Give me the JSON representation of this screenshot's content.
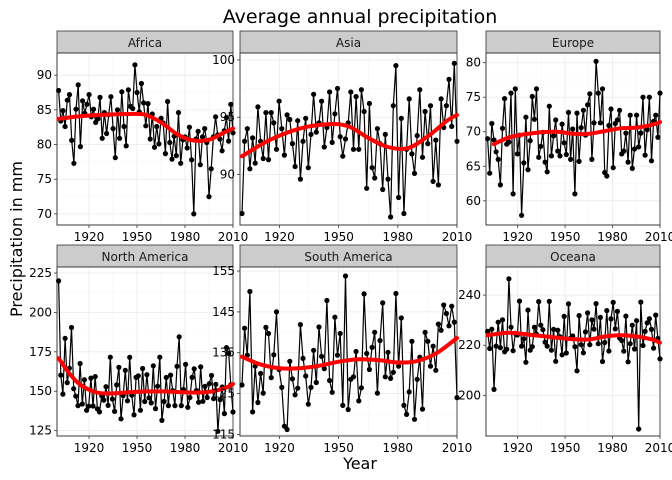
{
  "chart_data": {
    "type": "line",
    "title": "Average annual precipitation",
    "xlabel": "Year",
    "ylabel": "Precipitation in mm",
    "x_ticks": [
      1920,
      1950,
      1980,
      2010
    ],
    "xlim": [
      1900,
      2010
    ],
    "grid": true,
    "colors": {
      "points": "#000000",
      "smooth": "#ff0000",
      "strip": "#cccccc"
    },
    "facets": [
      {
        "name": "Africa",
        "ylim": [
          68.4,
          93.2
        ],
        "y_ticks": [
          70,
          75,
          80,
          85,
          90
        ],
        "values": [
          87.8,
          83.4,
          84.9,
          82.6,
          86.4,
          87.2,
          80.6,
          77.3,
          85.1,
          88.6,
          79.7,
          86.3,
          84.5,
          85.8,
          87.2,
          84.0,
          85.1,
          83.2,
          83.7,
          86.8,
          80.9,
          84.6,
          81.6,
          84.3,
          86.9,
          82.3,
          78.1,
          85.0,
          80.9,
          87.6,
          82.6,
          79.8,
          87.9,
          85.5,
          85.2,
          91.5,
          87.5,
          84.7,
          88.8,
          86.0,
          82.7,
          85.9,
          80.8,
          84.4,
          79.6,
          82.6,
          80.1,
          83.8,
          83.1,
          78.7,
          86.2,
          80.3,
          77.9,
          81.2,
          78.4,
          84.6,
          77.3,
          80.7,
          81.1,
          79.5,
          82.5,
          77.8,
          70.0,
          80.8,
          81.9,
          77.1,
          81.1,
          82.3,
          80.3,
          72.5,
          76.5,
          81.1,
          84.0,
          81.4,
          80.8,
          79.1,
          82.0,
          83.9,
          80.5,
          85.8,
          81.7
        ],
        "smooth": [
          [
            1901,
            83.7
          ],
          [
            1915,
            84.1
          ],
          [
            1930,
            84.3
          ],
          [
            1945,
            84.4
          ],
          [
            1955,
            84.3
          ],
          [
            1965,
            83.2
          ],
          [
            1975,
            81.5
          ],
          [
            1985,
            80.6
          ],
          [
            1995,
            80.7
          ],
          [
            2005,
            81.8
          ],
          [
            2010,
            82.3
          ]
        ]
      },
      {
        "name": "Asia",
        "ylim": [
          85.6,
          100.6
        ],
        "y_ticks": [
          90,
          95,
          100
        ],
        "values": [
          86.6,
          92.9,
          94.0,
          90.5,
          93.2,
          91.0,
          95.9,
          92.9,
          91.4,
          95.4,
          91.3,
          95.4,
          94.5,
          92.2,
          96.4,
          94.0,
          91.7,
          95.2,
          94.8,
          92.7,
          90.7,
          94.7,
          89.6,
          92.9,
          94.9,
          90.6,
          93.5,
          97.0,
          93.7,
          94.5,
          96.4,
          92.4,
          94.1,
          97.2,
          92.8,
          95.3,
          97.5,
          93.3,
          91.6,
          93.1,
          94.5,
          97.2,
          92.2,
          96.8,
          92.2,
          97.4,
          95.5,
          88.8,
          96.2,
          90.6,
          89.7,
          94.0,
          92.7,
          88.7,
          93.5,
          89.6,
          86.3,
          96.0,
          99.5,
          88.0,
          94.9,
          86.6,
          92.2,
          96.6,
          91.8,
          90.1,
          93.4,
          97.4,
          91.5,
          95.5,
          92.7,
          96.0,
          89.4,
          93.0,
          89.1,
          96.6,
          94.1,
          96.0,
          98.3,
          94.2,
          99.7,
          92.9
        ],
        "smooth": [
          [
            1901,
            91.6
          ],
          [
            1915,
            93.0
          ],
          [
            1930,
            94.0
          ],
          [
            1945,
            94.4
          ],
          [
            1955,
            94.2
          ],
          [
            1965,
            93.2
          ],
          [
            1975,
            92.4
          ],
          [
            1985,
            92.3
          ],
          [
            1995,
            93.3
          ],
          [
            2005,
            94.7
          ],
          [
            2010,
            95.2
          ]
        ]
      },
      {
        "name": "Europe",
        "ylim": [
          56.5,
          81.4
        ],
        "y_ticks": [
          60,
          65,
          70,
          75,
          80
        ],
        "values": [
          69.0,
          64.0,
          71.2,
          68.8,
          67.1,
          66.0,
          62.3,
          70.5,
          74.8,
          68.2,
          68.5,
          75.6,
          61.0,
          76.2,
          66.8,
          69.5,
          57.9,
          65.5,
          72.1,
          64.5,
          68.7,
          75.1,
          71.8,
          76.2,
          66.3,
          67.9,
          69.9,
          65.6,
          64.2,
          73.7,
          66.5,
          69.4,
          71.7,
          67.2,
          66.5,
          71.1,
          68.4,
          66.7,
          72.8,
          66.0,
          70.4,
          61.0,
          72.7,
          65.7,
          70.6,
          73.1,
          69.5,
          73.9,
          75.5,
          66.0,
          71.3,
          80.2,
          75.6,
          71.3,
          76.2,
          64.1,
          63.6,
          70.9,
          73.3,
          64.8,
          71.2,
          71.7,
          73.1,
          66.8,
          67.2,
          69.8,
          65.6,
          72.4,
          64.7,
          67.5,
          72.4,
          67.8,
          69.8,
          75.0,
          66.6,
          70.3,
          75.0,
          65.8,
          71.5,
          72.4,
          69.2,
          75.6
        ],
        "smooth": [
          [
            1905,
            68.2
          ],
          [
            1915,
            69.2
          ],
          [
            1930,
            69.8
          ],
          [
            1945,
            70.0
          ],
          [
            1955,
            69.7
          ],
          [
            1965,
            69.7
          ],
          [
            1975,
            70.1
          ],
          [
            1985,
            70.5
          ],
          [
            1995,
            70.6
          ],
          [
            2005,
            71.0
          ],
          [
            2010,
            71.4
          ]
        ]
      },
      {
        "name": "North America",
        "ylim": [
          121.6,
          228.8
        ],
        "y_ticks": [
          125,
          150,
          175,
          200,
          225
        ],
        "values": [
          220.0,
          160.2,
          148.2,
          183.6,
          155.5,
          164.6,
          190.4,
          151.6,
          146.9,
          140.8,
          167.6,
          141.9,
          157.3,
          137.9,
          140.5,
          158.3,
          140.6,
          159.3,
          138.8,
          136.9,
          147.1,
          144.4,
          152.9,
          141.0,
          171.6,
          145.1,
          137.2,
          154.0,
          165.2,
          132.5,
          147.3,
          163.3,
          143.9,
          171.5,
          147.5,
          135.0,
          158.8,
          159.8,
          137.9,
          164.4,
          143.5,
          160.5,
          145.8,
          142.6,
          166.1,
          139.0,
          153.2,
          171.6,
          131.5,
          143.5,
          158.7,
          140.9,
          160.2,
          150.4,
          140.9,
          165.8,
          184.5,
          140.9,
          151.1,
          167.0,
          139.8,
          146.0,
          158.8,
          164.2,
          150.4,
          143.0,
          165.4,
          143.6,
          153.1,
          146.0,
          154.8,
          160.0,
          145.3,
          154.4,
          124.6,
          144.7,
          152.7,
          135.8,
          177.7,
          173.9,
          154.0,
          136.8
        ],
        "smooth": [
          [
            1901,
            170.9
          ],
          [
            1908,
            160.9
          ],
          [
            1915,
            153.8
          ],
          [
            1925,
            149.2
          ],
          [
            1935,
            148.6
          ],
          [
            1945,
            149.3
          ],
          [
            1955,
            149.8
          ],
          [
            1965,
            149.9
          ],
          [
            1975,
            149.5
          ],
          [
            1985,
            149.1
          ],
          [
            1995,
            149.6
          ],
          [
            2005,
            152.0
          ],
          [
            2010,
            154.6
          ]
        ]
      },
      {
        "name": "South America",
        "ylim": [
          114.6,
          156.0
        ],
        "y_ticks": [
          115,
          125,
          135,
          145,
          155
        ],
        "values": [
          127.1,
          141.0,
          134.4,
          150.0,
          120.5,
          131.7,
          122.8,
          129.9,
          125.1,
          141.2,
          139.7,
          128.9,
          134.5,
          145.0,
          130.9,
          126.5,
          117.0,
          116.2,
          132.9,
          128.6,
          124.7,
          126.3,
          141.9,
          133.6,
          129.3,
          122.4,
          126.5,
          135.6,
          127.7,
          141.3,
          134.1,
          131.1,
          147.8,
          128.2,
          125.3,
          143.7,
          134.4,
          139.7,
          122.1,
          153.8,
          121.1,
          128.5,
          129.1,
          135.3,
          123.2,
          126.4,
          149.4,
          134.8,
          130.9,
          136.3,
          140.0,
          125.1,
          138.0,
          147.2,
          129.1,
          135.1,
          128.7,
          130.2,
          149.5,
          131.7,
          143.5,
          122.1,
          119.9,
          125.4,
          137.8,
          118.7,
          128.5,
          133.9,
          121.2,
          140.0,
          137.8,
          131.7,
          136.6,
          130.7,
          142.0,
          140.5,
          146.7,
          144.6,
          141.6,
          146.4,
          142.5,
          124.0
        ],
        "smooth": [
          [
            1901,
            134.0
          ],
          [
            1910,
            132.2
          ],
          [
            1920,
            131.2
          ],
          [
            1930,
            131.2
          ],
          [
            1940,
            131.8
          ],
          [
            1950,
            132.8
          ],
          [
            1960,
            133.4
          ],
          [
            1970,
            133.2
          ],
          [
            1980,
            132.6
          ],
          [
            1990,
            133.0
          ],
          [
            2000,
            135.0
          ],
          [
            2010,
            138.6
          ]
        ]
      },
      {
        "name": "Oceana",
        "ylim": [
          183.8,
          251.2
        ],
        "y_ticks": [
          200,
          220,
          240
        ],
        "values": [
          225.5,
          218.7,
          226.4,
          202.4,
          219.6,
          229.2,
          219.0,
          230.1,
          217.4,
          218.4,
          246.5,
          227.2,
          217.8,
          224.7,
          224.1,
          237.6,
          219.6,
          222.6,
          213.2,
          234.0,
          218.0,
          219.4,
          227.2,
          224.4,
          237.4,
          228.0,
          226.2,
          221.2,
          219.6,
          237.5,
          218.0,
          226.3,
          213.6,
          226.0,
          223.4,
          216.2,
          231.5,
          216.9,
          236.5,
          222.8,
          223.7,
          219.4,
          209.8,
          231.8,
          220.2,
          217.0,
          225.3,
          232.9,
          220.2,
          230.1,
          226.4,
          236.6,
          220.6,
          231.1,
          213.5,
          221.1,
          233.8,
          217.7,
          230.5,
          237.1,
          226.5,
          233.5,
          222.9,
          221.9,
          217.6,
          231.6,
          213.4,
          220.6,
          228.0,
          218.5,
          229.8,
          186.6,
          237.2,
          219.9,
          225.5,
          228.9,
          230.6,
          226.3,
          218.8,
          232.0,
          222.7,
          214.6
        ],
        "smooth": [
          [
            1901,
            224.0
          ],
          [
            1915,
            225.0
          ],
          [
            1930,
            224.0
          ],
          [
            1945,
            223.0
          ],
          [
            1955,
            222.4
          ],
          [
            1965,
            222.3
          ],
          [
            1975,
            223.5
          ],
          [
            1985,
            224.0
          ],
          [
            1995,
            223.5
          ],
          [
            2005,
            222.3
          ],
          [
            2010,
            221.0
          ]
        ]
      }
    ]
  }
}
